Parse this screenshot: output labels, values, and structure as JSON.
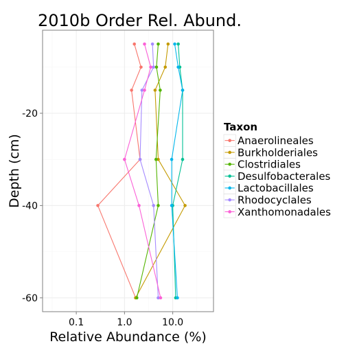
{
  "chart_data": {
    "type": "line",
    "title": "2010b Order Rel. Abund.",
    "xlabel": "Relative Abundance (%)",
    "ylabel": "Depth (cm)",
    "x_scale": "log10",
    "xlim": [
      0.02,
      70
    ],
    "ylim": [
      -63,
      -2
    ],
    "x_ticks": [
      0.1,
      1.0,
      10.0
    ],
    "x_tick_labels": [
      "0.1",
      "1.0",
      "10.0"
    ],
    "y_ticks": [
      -20,
      -40,
      -60
    ],
    "y_tick_labels": [
      "-20",
      "-40",
      "-60"
    ],
    "grid": true,
    "legend": {
      "title": "Taxon",
      "position": "right"
    },
    "depths": [
      -5,
      -10,
      -15,
      -30,
      -40,
      -60
    ],
    "series": [
      {
        "name": "Anaerolineales",
        "color": "#F8766D",
        "values": [
          1.6,
          2.2,
          1.4,
          2.1,
          0.28,
          1.7
        ]
      },
      {
        "name": "Burkholderiales",
        "color": "#C49A00",
        "values": [
          8.0,
          7.0,
          4.3,
          5.0,
          18.0,
          1.7
        ]
      },
      {
        "name": "Clostridiales",
        "color": "#53B400",
        "values": [
          5.0,
          4.6,
          5.5,
          4.5,
          5.0,
          1.8
        ]
      },
      {
        "name": "Desulfobacterales",
        "color": "#00C094",
        "values": [
          13.0,
          14.0,
          16.0,
          16.0,
          10.0,
          11.5
        ]
      },
      {
        "name": "Lactobacillales",
        "color": "#00B6EB",
        "values": [
          11.0,
          13.0,
          16.0,
          9.5,
          9.5,
          12.5
        ]
      },
      {
        "name": "Rhodocyclales",
        "color": "#A58AFF",
        "values": [
          3.8,
          4.0,
          2.3,
          2.1,
          4.0,
          5.0
        ]
      },
      {
        "name": "Xanthomonadales",
        "color": "#FB61D7",
        "values": [
          2.6,
          3.5,
          2.6,
          1.0,
          2.0,
          5.6
        ]
      }
    ]
  }
}
